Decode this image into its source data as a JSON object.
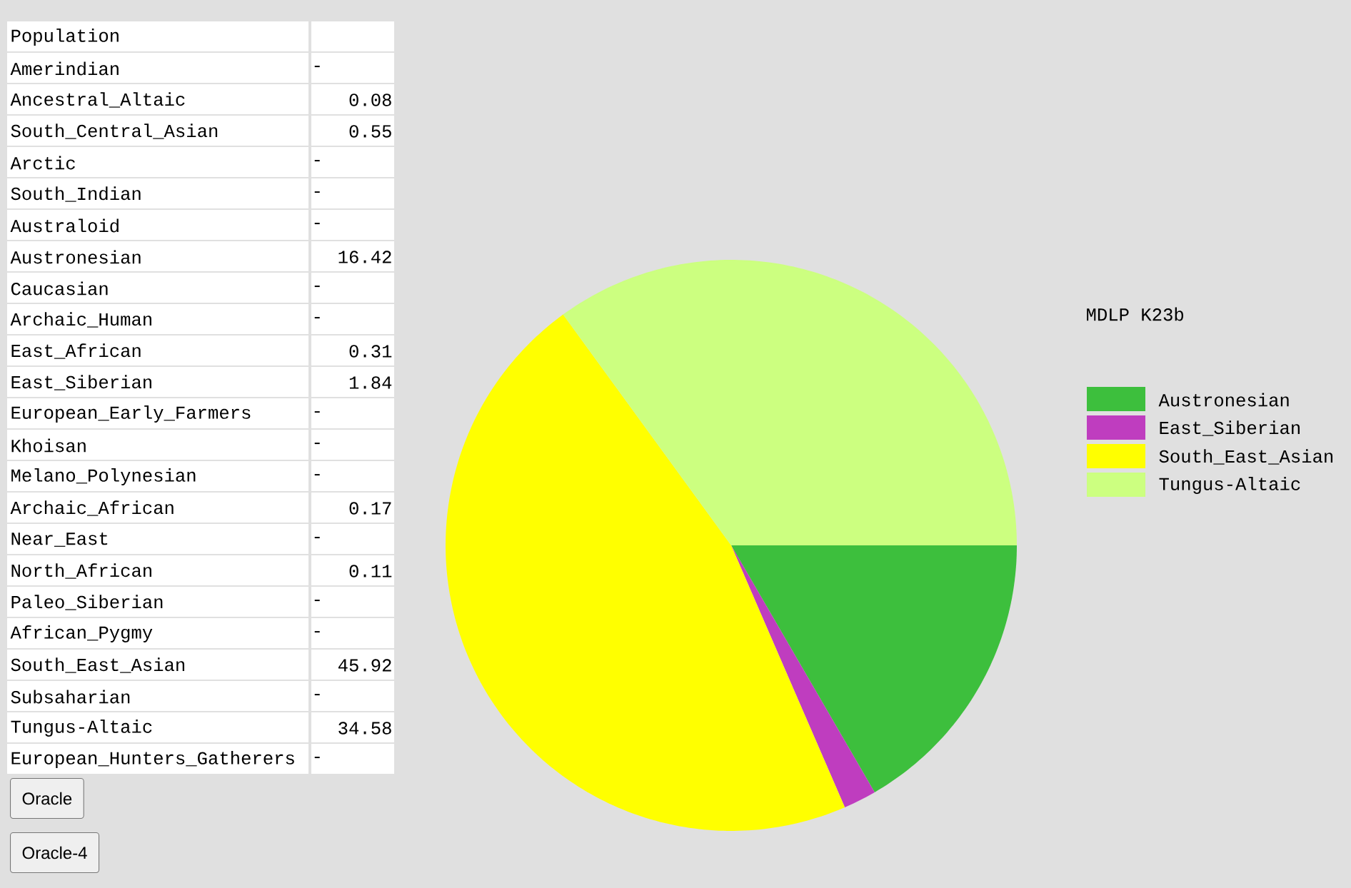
{
  "chart_data": [
    {
      "type": "other",
      "title": "Population",
      "categories": [
        "Amerindian",
        "Ancestral_Altaic",
        "South_Central_Asian",
        "Arctic",
        "South_Indian",
        "Australoid",
        "Austronesian",
        "Caucasian",
        "Archaic_Human",
        "East_African",
        "East_Siberian",
        "European_Early_Farmers",
        "Khoisan",
        "Melano_Polynesian",
        "Archaic_African",
        "Near_East",
        "North_African",
        "Paleo_Siberian",
        "African_Pygmy",
        "South_East_Asian",
        "Subsaharian",
        "Tungus-Altaic",
        "European_Hunters_Gatherers"
      ],
      "values": [
        null,
        0.08,
        0.55,
        null,
        null,
        null,
        16.42,
        null,
        null,
        0.31,
        1.84,
        null,
        null,
        null,
        0.17,
        null,
        0.11,
        null,
        null,
        45.92,
        null,
        34.58,
        null
      ],
      "value_labels": [
        "-",
        "0.08",
        "0.55",
        "-",
        "-",
        "-",
        "16.42",
        "-",
        "-",
        "0.31",
        "1.84",
        "-",
        "-",
        "-",
        "0.17",
        "-",
        "0.11",
        "-",
        "-",
        "45.92",
        "-",
        "34.58",
        "-"
      ],
      "annotations": [
        "Oracle",
        "Oracle-4"
      ]
    },
    {
      "type": "pie",
      "title": "MDLP K23b",
      "categories": [
        "Austronesian",
        "East_Siberian",
        "South_East_Asian",
        "Tungus-Altaic"
      ],
      "values": [
        16.42,
        1.84,
        45.92,
        34.58
      ],
      "colors": [
        "#3dbf3d",
        "#bf3dbf",
        "#ffff00",
        "#ccff80"
      ],
      "legend": "right"
    }
  ]
}
